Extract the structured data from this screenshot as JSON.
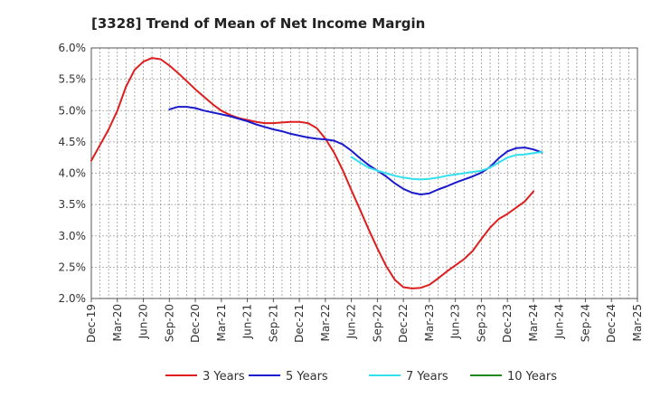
{
  "chart_data": {
    "type": "line",
    "title": "[3328]  Trend of Mean of Net Income Margin",
    "xlabel": "",
    "ylabel": "",
    "ylim": [
      2.0,
      6.0
    ],
    "y_ticks": [
      "6.0%",
      "5.5%",
      "5.0%",
      "4.5%",
      "4.0%",
      "3.5%",
      "3.0%",
      "2.5%",
      "2.0%"
    ],
    "x_ticks": [
      "Dec-19",
      "Mar-20",
      "Jun-20",
      "Sep-20",
      "Dec-20",
      "Mar-21",
      "Jun-21",
      "Sep-21",
      "Dec-21",
      "Mar-22",
      "Jun-22",
      "Sep-22",
      "Dec-22",
      "Mar-23",
      "Jun-23",
      "Sep-23",
      "Dec-23",
      "Mar-24",
      "Jun-24",
      "Sep-24",
      "Dec-24",
      "Mar-25"
    ],
    "x_unit": "months since Dec-19",
    "grid": true,
    "legend_position": "bottom",
    "series": [
      {
        "name": "3 Years",
        "color": "#dd1f1f",
        "points": [
          [
            0,
            4.2
          ],
          [
            1,
            4.45
          ],
          [
            2,
            4.7
          ],
          [
            3,
            5.0
          ],
          [
            4,
            5.38
          ],
          [
            5,
            5.65
          ],
          [
            6,
            5.78
          ],
          [
            7,
            5.84
          ],
          [
            8,
            5.82
          ],
          [
            9,
            5.72
          ],
          [
            10,
            5.6
          ],
          [
            11,
            5.47
          ],
          [
            12,
            5.34
          ],
          [
            13,
            5.22
          ],
          [
            14,
            5.1
          ],
          [
            15,
            5.0
          ],
          [
            16,
            4.93
          ],
          [
            17,
            4.88
          ],
          [
            18,
            4.85
          ],
          [
            19,
            4.82
          ],
          [
            20,
            4.8
          ],
          [
            21,
            4.8
          ],
          [
            22,
            4.81
          ],
          [
            23,
            4.82
          ],
          [
            24,
            4.82
          ],
          [
            25,
            4.8
          ],
          [
            26,
            4.72
          ],
          [
            27,
            4.55
          ],
          [
            28,
            4.33
          ],
          [
            29,
            4.05
          ],
          [
            30,
            3.73
          ],
          [
            31,
            3.42
          ],
          [
            32,
            3.1
          ],
          [
            33,
            2.8
          ],
          [
            34,
            2.52
          ],
          [
            35,
            2.3
          ],
          [
            36,
            2.18
          ],
          [
            37,
            2.16
          ],
          [
            38,
            2.17
          ],
          [
            39,
            2.22
          ],
          [
            40,
            2.32
          ],
          [
            41,
            2.43
          ],
          [
            42,
            2.53
          ],
          [
            43,
            2.63
          ],
          [
            44,
            2.76
          ],
          [
            45,
            2.95
          ],
          [
            46,
            3.13
          ],
          [
            47,
            3.27
          ],
          [
            48,
            3.35
          ],
          [
            49,
            3.45
          ],
          [
            50,
            3.55
          ],
          [
            51,
            3.71
          ]
        ]
      },
      {
        "name": "5 Years",
        "color": "#1a1acc",
        "points": [
          [
            9,
            5.02
          ],
          [
            10,
            5.06
          ],
          [
            11,
            5.06
          ],
          [
            12,
            5.04
          ],
          [
            13,
            5.0
          ],
          [
            14,
            4.97
          ],
          [
            15,
            4.94
          ],
          [
            16,
            4.91
          ],
          [
            17,
            4.87
          ],
          [
            18,
            4.83
          ],
          [
            19,
            4.78
          ],
          [
            20,
            4.74
          ],
          [
            21,
            4.7
          ],
          [
            22,
            4.67
          ],
          [
            23,
            4.63
          ],
          [
            24,
            4.6
          ],
          [
            25,
            4.57
          ],
          [
            26,
            4.55
          ],
          [
            27,
            4.54
          ],
          [
            28,
            4.52
          ],
          [
            29,
            4.46
          ],
          [
            30,
            4.36
          ],
          [
            31,
            4.24
          ],
          [
            32,
            4.13
          ],
          [
            33,
            4.04
          ],
          [
            34,
            3.95
          ],
          [
            35,
            3.84
          ],
          [
            36,
            3.75
          ],
          [
            37,
            3.69
          ],
          [
            38,
            3.66
          ],
          [
            39,
            3.68
          ],
          [
            40,
            3.74
          ],
          [
            41,
            3.79
          ],
          [
            42,
            3.85
          ],
          [
            43,
            3.9
          ],
          [
            44,
            3.95
          ],
          [
            45,
            4.01
          ],
          [
            46,
            4.1
          ],
          [
            47,
            4.24
          ],
          [
            48,
            4.35
          ],
          [
            49,
            4.4
          ],
          [
            50,
            4.41
          ],
          [
            51,
            4.38
          ],
          [
            52,
            4.33
          ]
        ]
      },
      {
        "name": "7 Years",
        "color": "#33e0ee",
        "points": [
          [
            30,
            4.26
          ],
          [
            31,
            4.17
          ],
          [
            32,
            4.09
          ],
          [
            33,
            4.04
          ],
          [
            34,
            4.0
          ],
          [
            35,
            3.96
          ],
          [
            36,
            3.93
          ],
          [
            37,
            3.91
          ],
          [
            38,
            3.9
          ],
          [
            39,
            3.91
          ],
          [
            40,
            3.93
          ],
          [
            41,
            3.96
          ],
          [
            42,
            3.98
          ],
          [
            43,
            4.0
          ],
          [
            44,
            4.02
          ],
          [
            45,
            4.04
          ],
          [
            46,
            4.09
          ],
          [
            47,
            4.17
          ],
          [
            48,
            4.25
          ],
          [
            49,
            4.29
          ],
          [
            50,
            4.3
          ],
          [
            51,
            4.32
          ],
          [
            52,
            4.34
          ]
        ]
      },
      {
        "name": "10 Years",
        "color": "#1e8a1e",
        "points": []
      }
    ]
  }
}
